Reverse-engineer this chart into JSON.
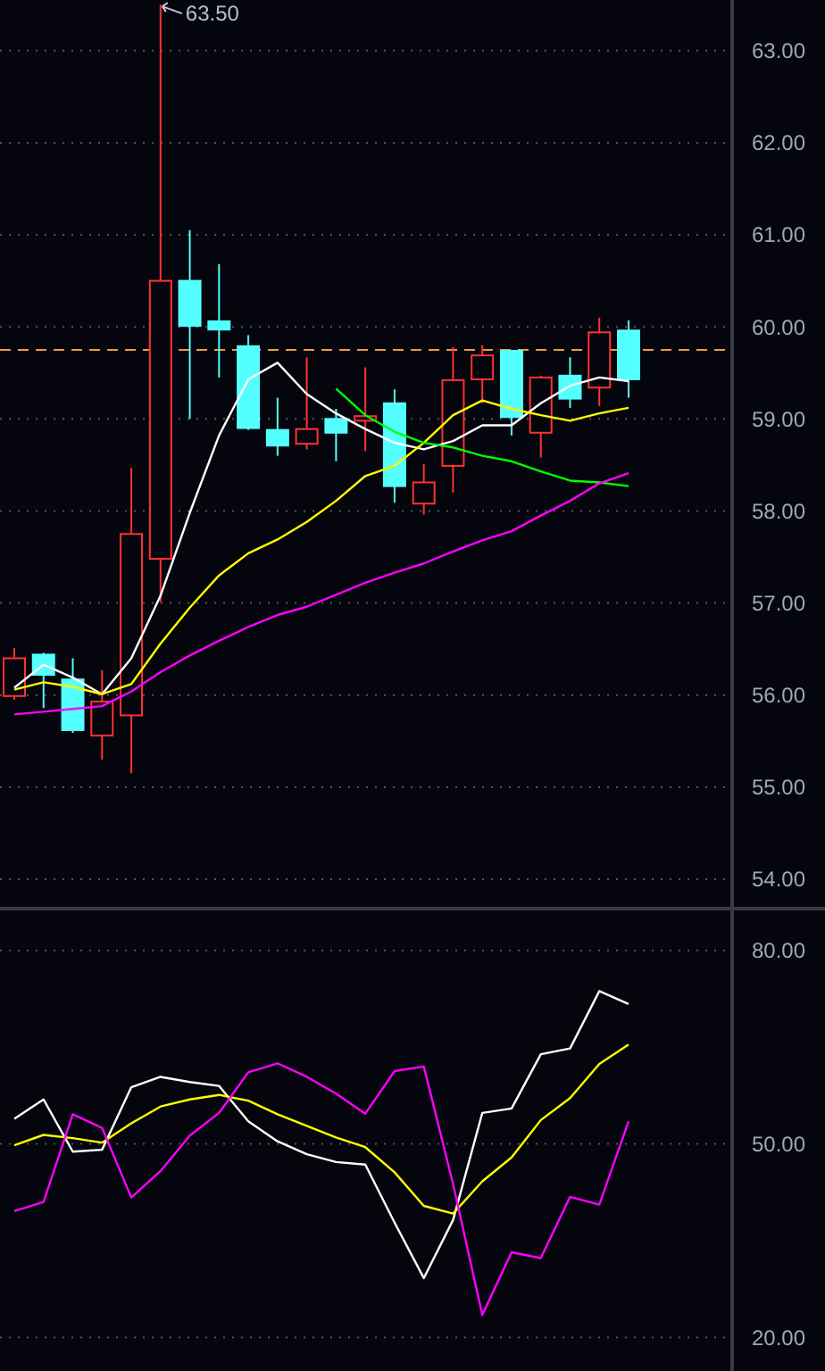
{
  "chart_data": [
    {
      "type": "candlestick",
      "categories": [
        null,
        null,
        null,
        null,
        null,
        null,
        null,
        null,
        null,
        null,
        null,
        null,
        null,
        null,
        null,
        null,
        null,
        null,
        null,
        null,
        null,
        null
      ],
      "ohlc": [
        [
          55.99,
          56.51,
          55.95,
          56.4
        ],
        [
          56.44,
          56.46,
          55.86,
          56.22
        ],
        [
          56.17,
          56.4,
          55.59,
          55.62
        ],
        [
          55.56,
          56.27,
          55.3,
          55.93
        ],
        [
          55.78,
          58.47,
          55.15,
          57.75
        ],
        [
          57.48,
          63.5,
          57.01,
          60.5
        ],
        [
          60.5,
          61.05,
          59.0,
          60.01
        ],
        [
          60.06,
          60.68,
          59.45,
          59.97
        ],
        [
          59.79,
          59.91,
          58.88,
          58.9
        ],
        [
          58.88,
          59.23,
          58.6,
          58.71
        ],
        [
          58.73,
          59.67,
          58.67,
          58.89
        ],
        [
          59.0,
          59.11,
          58.54,
          58.85
        ],
        [
          58.98,
          59.56,
          58.65,
          59.03
        ],
        [
          59.17,
          59.32,
          58.09,
          58.27
        ],
        [
          58.08,
          58.51,
          57.96,
          58.31
        ],
        [
          58.49,
          59.78,
          58.2,
          59.42
        ],
        [
          59.43,
          59.8,
          59.17,
          59.69
        ],
        [
          59.74,
          59.74,
          58.82,
          59.02
        ],
        [
          58.85,
          59.47,
          58.58,
          59.45
        ],
        [
          59.47,
          59.67,
          59.12,
          59.22
        ],
        [
          59.34,
          60.1,
          59.14,
          59.94
        ],
        [
          59.96,
          60.07,
          59.23,
          59.43
        ]
      ],
      "colors": [
        "#ff3232",
        "#54ffff",
        "#54ffff",
        "#ff3232",
        "#ff3232",
        "#ff3232",
        "#54ffff",
        "#54ffff",
        "#54ffff",
        "#54ffff",
        "#ff3232",
        "#54ffff",
        "#ff3232",
        "#54ffff",
        "#ff3232",
        "#ff3232",
        "#ff3232",
        "#54ffff",
        "#ff3232",
        "#54ffff",
        "#ff3232",
        "#54ffff"
      ],
      "series": [
        {
          "type": "line",
          "color": "#ffffff",
          "values": [
            56.08,
            56.33,
            56.19,
            56.01,
            56.4,
            57.08,
            57.98,
            58.82,
            59.43,
            59.61,
            59.27,
            59.06,
            58.89,
            58.74,
            58.67,
            58.76,
            58.93,
            58.93,
            59.17,
            59.36,
            59.45,
            59.41
          ]
        },
        {
          "type": "line",
          "color": "#ffff00",
          "values": [
            56.06,
            56.14,
            56.09,
            56.01,
            56.12,
            56.56,
            56.95,
            57.3,
            57.54,
            57.69,
            57.88,
            58.11,
            58.38,
            58.49,
            58.74,
            59.04,
            59.2,
            59.11,
            59.04,
            58.98,
            59.06,
            59.12
          ]
        },
        {
          "type": "line",
          "color": "#00ff00",
          "values": [
            null,
            null,
            null,
            null,
            null,
            null,
            null,
            null,
            null,
            null,
            null,
            59.33,
            59.04,
            58.86,
            58.74,
            58.69,
            58.6,
            58.54,
            58.43,
            58.33,
            58.31,
            58.27
          ]
        },
        {
          "type": "line",
          "color": "#ff00ff",
          "values": [
            55.79,
            55.82,
            55.85,
            55.88,
            56.04,
            56.25,
            56.43,
            56.59,
            56.74,
            56.87,
            56.96,
            57.09,
            57.22,
            57.33,
            57.43,
            57.56,
            57.68,
            57.78,
            57.95,
            58.11,
            58.3,
            58.41
          ]
        }
      ],
      "ylim": [
        53.7,
        63.55
      ],
      "yticks": [
        {
          "value": 54,
          "label": "54.00"
        },
        {
          "value": 55,
          "label": "55.00"
        },
        {
          "value": 56,
          "label": "56.00"
        },
        {
          "value": 57,
          "label": "57.00"
        },
        {
          "value": 58,
          "label": "58.00"
        },
        {
          "value": 59,
          "label": "59.00"
        },
        {
          "value": 60,
          "label": "60.00"
        },
        {
          "value": 61,
          "label": "61.00"
        },
        {
          "value": 62,
          "label": "62.00"
        },
        {
          "value": 63,
          "label": "63.00"
        }
      ],
      "grid": "y",
      "tick_labels": "y",
      "ref_lines": [
        {
          "axis": "y",
          "value": 59.75,
          "color": "#e8a040",
          "line_style": "dashed"
        }
      ],
      "annotations": [
        "63.50"
      ]
    },
    {
      "type": "line",
      "categories": [
        null,
        null,
        null,
        null,
        null,
        null,
        null,
        null,
        null,
        null,
        null,
        null,
        null,
        null,
        null,
        null,
        null,
        null,
        null,
        null,
        null,
        null
      ],
      "series": [
        {
          "color": "#ffffff",
          "values": [
            53.9,
            56.9,
            48.8,
            49.1,
            58.8,
            60.4,
            59.6,
            59.0,
            53.5,
            50.4,
            48.4,
            47.2,
            46.8,
            37.8,
            29.2,
            38.2,
            54.8,
            55.5,
            63.9,
            64.8,
            73.7,
            71.7
          ]
        },
        {
          "color": "#ffff00",
          "values": [
            49.8,
            51.4,
            50.9,
            50.2,
            53.2,
            55.8,
            56.9,
            57.6,
            56.7,
            54.6,
            52.8,
            51.0,
            49.5,
            45.6,
            40.4,
            39.2,
            44.2,
            47.9,
            53.7,
            57.1,
            62.4,
            65.4
          ]
        },
        {
          "color": "#ff00ff",
          "values": [
            39.6,
            41.0,
            54.6,
            52.5,
            41.7,
            45.8,
            51.3,
            54.8,
            61.1,
            62.5,
            60.4,
            57.8,
            54.7,
            61.3,
            62.0,
            43.8,
            23.5,
            33.2,
            32.3,
            41.8,
            40.6,
            53.5
          ]
        }
      ],
      "ylim": [
        14.8,
        86.2
      ],
      "yticks": [
        {
          "value": 20,
          "label": "20.00"
        },
        {
          "value": 50,
          "label": "50.00"
        },
        {
          "value": 80,
          "label": "80.00"
        }
      ],
      "grid": "y",
      "tick_labels": "y"
    }
  ]
}
